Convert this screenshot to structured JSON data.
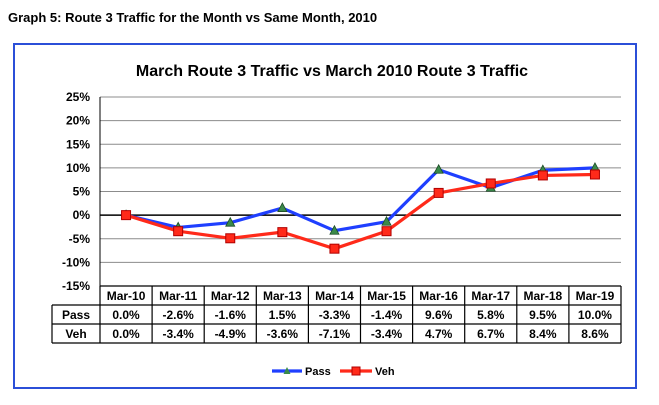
{
  "page_caption": "Graph 5: Route 3 Traffic for the Month vs Same Month, 2010",
  "chart_data": {
    "type": "line",
    "title": "March Route 3 Traffic vs March 2010 Route 3 Traffic",
    "categories": [
      "Mar-10",
      "Mar-11",
      "Mar-12",
      "Mar-13",
      "Mar-14",
      "Mar-15",
      "Mar-16",
      "Mar-17",
      "Mar-18",
      "Mar-19"
    ],
    "ylim": [
      -15,
      25
    ],
    "yticks": [
      25,
      20,
      15,
      10,
      5,
      0,
      -5,
      -10,
      -15
    ],
    "ytick_labels": [
      "25%",
      "20%",
      "15%",
      "10%",
      "5%",
      "0%",
      "-5%",
      "-10%",
      "-15%"
    ],
    "series": [
      {
        "name": "Pass",
        "color": "#1f3fff",
        "marker": "triangle",
        "values": [
          0.0,
          -2.6,
          -1.6,
          1.5,
          -3.3,
          -1.4,
          9.6,
          5.8,
          9.5,
          10.0
        ],
        "labels": [
          "0.0%",
          "-2.6%",
          "-1.6%",
          "1.5%",
          "-3.3%",
          "-1.4%",
          "9.6%",
          "5.8%",
          "9.5%",
          "10.0%"
        ]
      },
      {
        "name": "Veh",
        "color": "#ff2a1a",
        "marker": "square",
        "values": [
          0.0,
          -3.4,
          -4.9,
          -3.6,
          -7.1,
          -3.4,
          4.7,
          6.7,
          8.4,
          8.6
        ],
        "labels": [
          "0.0%",
          "-3.4%",
          "-4.9%",
          "-3.6%",
          "-7.1%",
          "-3.4%",
          "4.7%",
          "6.7%",
          "8.4%",
          "8.6%"
        ]
      }
    ]
  }
}
